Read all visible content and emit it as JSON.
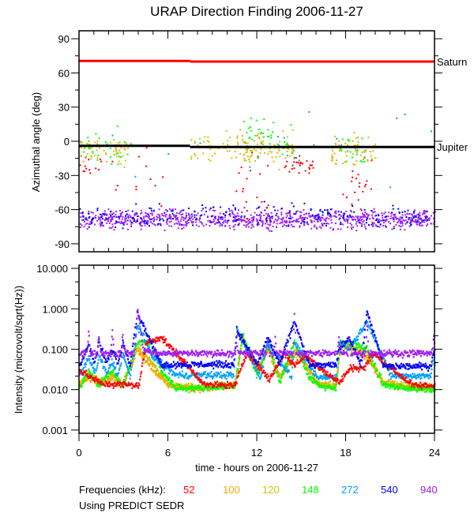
{
  "chart_data": [
    {
      "type": "scatter",
      "title": "URAP Direction Finding  2006-11-27",
      "xlabel": "",
      "ylabel": "Azimuthal angle (deg)",
      "xlim": [
        0,
        24
      ],
      "ylim": [
        -97,
        97
      ],
      "yticks": [
        "90",
        "60",
        "30",
        "0",
        "-30",
        "-60",
        "-90"
      ],
      "ytick_values": [
        90,
        60,
        30,
        0,
        -30,
        -60,
        -90
      ],
      "reference_lines": [
        {
          "name": "Saturn",
          "color": "#ff0000",
          "segments": [
            [
              0,
              7.5,
              70.5
            ],
            [
              7.5,
              24,
              70
            ]
          ]
        },
        {
          "name": "Jupiter",
          "color": "#000000",
          "segments": [
            [
              0,
              7.5,
              -4
            ],
            [
              7.5,
              24,
              -5
            ]
          ]
        }
      ],
      "clusters": [
        {
          "freq": "940",
          "hours": [
            0,
            24
          ],
          "angle": -68,
          "spread": 4,
          "count": 900
        },
        {
          "freq": "540",
          "hours": [
            0,
            24
          ],
          "angle": -65,
          "spread": 5,
          "count": 260
        },
        {
          "freq": "52",
          "hours": [
            0,
            1.5
          ],
          "angle": -20,
          "spread": 6,
          "count": 14
        },
        {
          "freq": "52",
          "hours": [
            2,
            6
          ],
          "angle": -35,
          "spread": 18,
          "count": 12
        },
        {
          "freq": "52",
          "hours": [
            10.5,
            13
          ],
          "angle": -38,
          "spread": 15,
          "count": 18
        },
        {
          "freq": "52",
          "hours": [
            13.8,
            15.8
          ],
          "angle": -21,
          "spread": 4,
          "count": 28
        },
        {
          "freq": "52",
          "hours": [
            17.5,
            19.8
          ],
          "angle": -35,
          "spread": 15,
          "count": 20
        },
        {
          "freq": "120",
          "hours": [
            0,
            3.5
          ],
          "angle": -8,
          "spread": 6,
          "count": 40
        },
        {
          "freq": "120",
          "hours": [
            7.5,
            14.5
          ],
          "angle": -6,
          "spread": 7,
          "count": 90
        },
        {
          "freq": "120",
          "hours": [
            17,
            20
          ],
          "angle": -7,
          "spread": 7,
          "count": 40
        },
        {
          "freq": "100",
          "hours": [
            0,
            3
          ],
          "angle": -6,
          "spread": 5,
          "count": 20
        },
        {
          "freq": "100",
          "hours": [
            10,
            14.5
          ],
          "angle": -4,
          "spread": 6,
          "count": 40
        },
        {
          "freq": "100",
          "hours": [
            17,
            19.5
          ],
          "angle": -6,
          "spread": 6,
          "count": 20
        },
        {
          "freq": "148",
          "hours": [
            0,
            3.5
          ],
          "angle": -5,
          "spread": 8,
          "count": 30
        },
        {
          "freq": "148",
          "hours": [
            11,
            14.5
          ],
          "angle": 3,
          "spread": 8,
          "count": 40
        },
        {
          "freq": "148",
          "hours": [
            17,
            19.5
          ],
          "angle": -8,
          "spread": 8,
          "count": 20
        },
        {
          "freq": "272",
          "hours": [
            0,
            24
          ],
          "angle": -5,
          "spread": 20,
          "count": 20
        }
      ]
    },
    {
      "type": "scatter",
      "xlabel": "time - hours on 2006-11-27",
      "ylabel": "Intensity (microvolt/sqrt(Hz))",
      "yscale": "log",
      "xlim": [
        0,
        24
      ],
      "ylim": [
        0.00083,
        12
      ],
      "xticks": [
        "0",
        "6",
        "12",
        "18",
        "24"
      ],
      "xtick_values": [
        0,
        6,
        12,
        18,
        24
      ],
      "yticks": [
        "10.000",
        "1.000",
        "0.100",
        "0.010",
        "0.001"
      ],
      "ytick_values": [
        10,
        1,
        0.1,
        0.01,
        0.001
      ],
      "series": [
        {
          "name": "100",
          "color": "#ffa500",
          "points": [
            [
              0,
              0.014
            ],
            [
              0.6,
              0.02
            ],
            [
              1.3,
              0.015
            ],
            [
              2.2,
              0.02
            ],
            [
              2.9,
              0.013
            ],
            [
              3.9,
              0.1
            ],
            [
              5,
              0.03
            ],
            [
              6,
              0.013
            ],
            [
              8,
              0.011
            ],
            [
              10.5,
              0.013
            ],
            [
              11,
              0.2
            ],
            [
              12,
              0.03
            ],
            [
              12.7,
              0.1
            ],
            [
              13.5,
              0.02
            ],
            [
              14.6,
              0.1
            ],
            [
              16,
              0.015
            ],
            [
              17.3,
              0.012
            ],
            [
              17.6,
              0.12
            ],
            [
              18.4,
              0.1
            ],
            [
              19.4,
              0.06
            ],
            [
              20.5,
              0.015
            ],
            [
              22,
              0.012
            ],
            [
              24,
              0.011
            ]
          ]
        },
        {
          "name": "120",
          "color": "#cdc000",
          "points": [
            [
              0,
              0.013
            ],
            [
              0.6,
              0.025
            ],
            [
              1.3,
              0.016
            ],
            [
              2.2,
              0.025
            ],
            [
              2.9,
              0.013
            ],
            [
              3.9,
              0.12
            ],
            [
              5,
              0.04
            ],
            [
              6,
              0.013
            ],
            [
              8,
              0.011
            ],
            [
              10.5,
              0.013
            ],
            [
              11,
              0.2
            ],
            [
              12,
              0.025
            ],
            [
              12.7,
              0.12
            ],
            [
              13.5,
              0.02
            ],
            [
              14.7,
              0.08
            ],
            [
              16,
              0.015
            ],
            [
              17.3,
              0.012
            ],
            [
              17.6,
              0.13
            ],
            [
              18.4,
              0.12
            ],
            [
              19.4,
              0.08
            ],
            [
              20.5,
              0.015
            ],
            [
              22,
              0.012
            ],
            [
              24,
              0.011
            ]
          ]
        },
        {
          "name": "148",
          "color": "#00ff00",
          "points": [
            [
              0,
              0.012
            ],
            [
              0.6,
              0.03
            ],
            [
              1.3,
              0.013
            ],
            [
              2.2,
              0.03
            ],
            [
              2.9,
              0.012
            ],
            [
              3.9,
              0.15
            ],
            [
              4.8,
              0.15
            ],
            [
              5.5,
              0.03
            ],
            [
              6.5,
              0.011
            ],
            [
              8,
              0.011
            ],
            [
              10.5,
              0.013
            ],
            [
              11,
              0.25
            ],
            [
              12,
              0.02
            ],
            [
              12.7,
              0.15
            ],
            [
              13.5,
              0.015
            ],
            [
              14.5,
              0.15
            ],
            [
              15.5,
              0.02
            ],
            [
              16.5,
              0.011
            ],
            [
              17.3,
              0.011
            ],
            [
              17.6,
              0.15
            ],
            [
              18.4,
              0.15
            ],
            [
              19.4,
              0.1
            ],
            [
              20.5,
              0.013
            ],
            [
              22,
              0.011
            ],
            [
              24,
              0.01
            ]
          ]
        },
        {
          "name": "272",
          "color": "#00a0ff",
          "points": [
            [
              0,
              0.023
            ],
            [
              0.6,
              0.06
            ],
            [
              1.1,
              0.025
            ],
            [
              1.3,
              0.07
            ],
            [
              1.8,
              0.025
            ],
            [
              2.2,
              0.05
            ],
            [
              2.6,
              0.022
            ],
            [
              2.9,
              0.08
            ],
            [
              3.4,
              0.02
            ],
            [
              3.9,
              0.4
            ],
            [
              5,
              0.06
            ],
            [
              6.5,
              0.023
            ],
            [
              10.4,
              0.023
            ],
            [
              10.6,
              0.3
            ],
            [
              12.2,
              0.02
            ],
            [
              12.7,
              0.15
            ],
            [
              14.3,
              0.02
            ],
            [
              14.5,
              0.15
            ],
            [
              16,
              0.02
            ],
            [
              17.3,
              0.02
            ],
            [
              17.5,
              0.15
            ],
            [
              18.2,
              0.1
            ],
            [
              19.4,
              0.5
            ],
            [
              21,
              0.022
            ],
            [
              23.7,
              0.022
            ],
            [
              23.9,
              0.1
            ],
            [
              24,
              0.03
            ]
          ]
        },
        {
          "name": "52",
          "color": "#ff0000",
          "points": [
            [
              0,
              0.03
            ],
            [
              1.5,
              0.014
            ],
            [
              4,
              0.013
            ],
            [
              4.5,
              0.15
            ],
            [
              5.5,
              0.2
            ],
            [
              7,
              0.05
            ],
            [
              8.5,
              0.013
            ],
            [
              10.5,
              0.013
            ],
            [
              11.3,
              0.085
            ],
            [
              12.8,
              0.018
            ],
            [
              13.8,
              0.08
            ],
            [
              14.5,
              0.04
            ],
            [
              15.2,
              0.07
            ],
            [
              17.5,
              0.015
            ],
            [
              18.3,
              0.035
            ],
            [
              19.2,
              0.035
            ],
            [
              19.8,
              0.08
            ],
            [
              22.5,
              0.0127
            ],
            [
              24,
              0.0127
            ]
          ]
        },
        {
          "name": "540",
          "color": "#0000ff",
          "points": [
            [
              0,
              0.042
            ],
            [
              0.6,
              0.13
            ],
            [
              1,
              0.045
            ],
            [
              1.3,
              0.15
            ],
            [
              1.8,
              0.045
            ],
            [
              2.2,
              0.1
            ],
            [
              2.6,
              0.045
            ],
            [
              2.9,
              0.15
            ],
            [
              3.4,
              0.045
            ],
            [
              3.9,
              0.8
            ],
            [
              5.5,
              0.042
            ],
            [
              10.4,
              0.042
            ],
            [
              10.6,
              0.3
            ],
            [
              12,
              0.042
            ],
            [
              12.7,
              0.2
            ],
            [
              13.5,
              0.042
            ],
            [
              14.5,
              0.5
            ],
            [
              15.5,
              0.04
            ],
            [
              17.3,
              0.04
            ],
            [
              17.5,
              0.1
            ],
            [
              18.2,
              0.2
            ],
            [
              19,
              0.04
            ],
            [
              19.4,
              0.9
            ],
            [
              20.5,
              0.038
            ],
            [
              23.7,
              0.038
            ],
            [
              23.9,
              0.1
            ],
            [
              24,
              0.04
            ]
          ]
        },
        {
          "name": "940",
          "color": "#a020f0",
          "points": [
            [
              0,
              0.08
            ],
            [
              0.5,
              0.08
            ],
            [
              0.6,
              0.3
            ],
            [
              0.7,
              0.08
            ],
            [
              1.2,
              0.08
            ],
            [
              1.3,
              0.25
            ],
            [
              1.4,
              0.08
            ],
            [
              2.1,
              0.08
            ],
            [
              2.2,
              0.3
            ],
            [
              2.3,
              0.08
            ],
            [
              2.8,
              0.08
            ],
            [
              2.9,
              0.25
            ],
            [
              3,
              0.08
            ],
            [
              3.7,
              0.08
            ],
            [
              3.9,
              1.0
            ],
            [
              4.3,
              0.1
            ],
            [
              5,
              0.08
            ],
            [
              10.5,
              0.08
            ],
            [
              10.6,
              0.18
            ],
            [
              10.7,
              0.08
            ],
            [
              12.6,
              0.08
            ],
            [
              12.7,
              0.2
            ],
            [
              12.8,
              0.08
            ],
            [
              13.1,
              0.08
            ],
            [
              13.2,
              0.2
            ],
            [
              13.3,
              0.08
            ],
            [
              14.4,
              0.08
            ],
            [
              14.5,
              1.0
            ],
            [
              14.6,
              0.08
            ],
            [
              17.4,
              0.08
            ],
            [
              17.5,
              0.2
            ],
            [
              17.6,
              0.08
            ],
            [
              18.1,
              0.08
            ],
            [
              18.2,
              0.2
            ],
            [
              18.3,
              0.08
            ],
            [
              19.3,
              0.08
            ],
            [
              19.4,
              0.5
            ],
            [
              19.5,
              0.08
            ],
            [
              23.8,
              0.08
            ],
            [
              23.9,
              0.2
            ],
            [
              24,
              0.08
            ]
          ]
        }
      ]
    }
  ],
  "legend": {
    "label": "Frequencies (kHz):",
    "items": [
      {
        "name": "52",
        "color": "#ff0000"
      },
      {
        "name": "100",
        "color": "#ffa500"
      },
      {
        "name": "120",
        "color": "#cdc000"
      },
      {
        "name": "148",
        "color": "#00ff00"
      },
      {
        "name": "272",
        "color": "#00a0ff"
      },
      {
        "name": "540",
        "color": "#0000ff"
      },
      {
        "name": "940",
        "color": "#a020f0"
      }
    ],
    "note": "Using PREDICT SEDR"
  }
}
